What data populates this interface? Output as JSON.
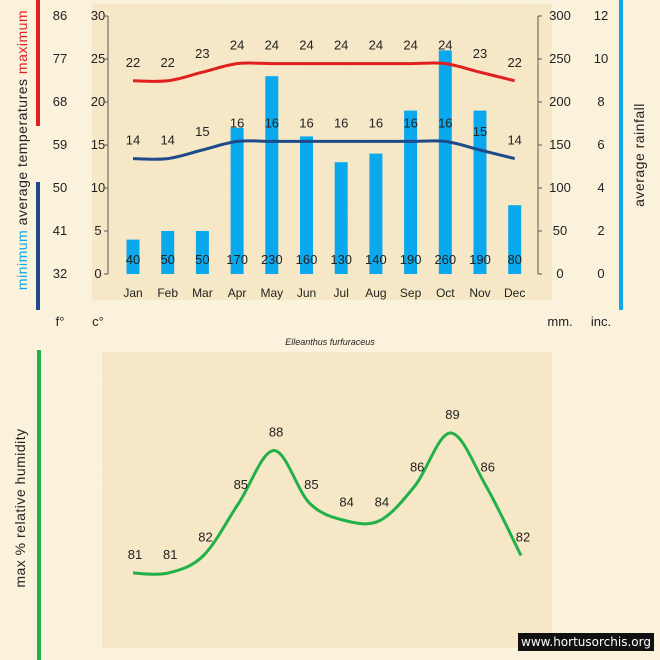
{
  "chart_data": [
    {
      "type": "bar+line",
      "subtitle": "Elleanthus furfuraceus",
      "categories": [
        "Jan",
        "Feb",
        "Mar",
        "Apr",
        "May",
        "Jun",
        "Jul",
        "Aug",
        "Sep",
        "Oct",
        "Nov",
        "Dec"
      ],
      "rainfall_mm": [
        40,
        50,
        50,
        170,
        230,
        160,
        130,
        140,
        190,
        260,
        190,
        80
      ],
      "max_temp_c": [
        22,
        22,
        23,
        24,
        24,
        24,
        24,
        24,
        24,
        24,
        23,
        22
      ],
      "min_temp_c": [
        14,
        14,
        15,
        16,
        16,
        16,
        16,
        16,
        16,
        16,
        15,
        14
      ],
      "left_label_parts": {
        "minimum": "minimum",
        "average_temperatures": "average  temperatures",
        "maximum": "maximum"
      },
      "right_label": "average rainfall",
      "unit_f": "f°",
      "unit_c": "c°",
      "unit_mm": "mm.",
      "unit_inc": "inc.",
      "f_ticks": [
        32,
        41,
        50,
        59,
        68,
        77,
        86
      ],
      "c_ticks": [
        0,
        5,
        10,
        15,
        20,
        25,
        30
      ],
      "mm_ticks": [
        0,
        50,
        100,
        150,
        200,
        250,
        300
      ],
      "inch_ticks": [
        0,
        2,
        4,
        6,
        8,
        10,
        12
      ],
      "c_range": [
        0,
        30
      ],
      "mm_range": [
        0,
        300
      ],
      "colors": {
        "bars": "#0aa8ec",
        "max_line": "#e02020",
        "min_line": "#1f4a8a",
        "left_max_bar": "#e02020",
        "left_min_bar": "#1f4a8a",
        "right_bar": "#0aa8ec"
      }
    },
    {
      "type": "line",
      "categories": [
        "Jan",
        "Feb",
        "Mar",
        "Apr",
        "May",
        "Jun",
        "Jul",
        "Aug",
        "Sep",
        "Oct",
        "Nov",
        "Dec"
      ],
      "values": [
        81,
        81,
        82,
        85,
        88,
        85,
        84,
        84,
        86,
        89,
        86,
        82
      ],
      "ylabel": "max %  relative humidity",
      "colors": {
        "line": "#22b048",
        "axis_bar": "#22b048"
      }
    }
  ],
  "credit": "www.hortusorchis.org",
  "colors": {
    "background": "#fbf2dc",
    "panel": "#f6e9c8"
  }
}
